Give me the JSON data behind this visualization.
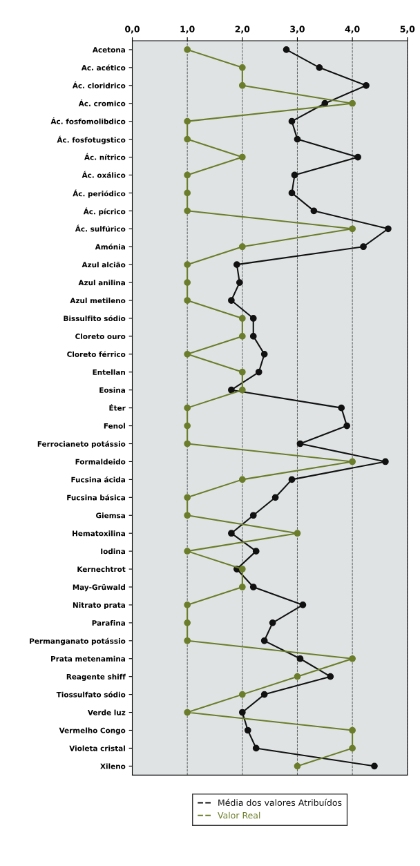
{
  "chart_data": {
    "type": "line",
    "orientation": "horizontal",
    "categories": [
      "Acetona",
      "Ac. acético",
      "Ác. cloridrico",
      "Ác. cromico",
      "Ác. fosfomolibdico",
      "Ác. fosfotugstico",
      "Ác. nítrico",
      "Ác. oxálico",
      "Ác. periódico",
      "Ác. pícrico",
      "Ác. sulfúrico",
      "Amónia",
      "Azul alcião",
      "Azul anilina",
      "Azul metileno",
      "Bissulfito sódio",
      "Cloreto ouro",
      "Cloreto férrico",
      "Entellan",
      "Eosina",
      "Éter",
      "Fenol",
      "Ferrocianeto potássio",
      "Formaldeido",
      "Fucsina ácida",
      "Fucsina básica",
      "Giemsa",
      "Hematoxilina",
      "Iodina",
      "Kernechtrot",
      "May-Grüwald",
      "Nitrato prata",
      "Parafina",
      "Permanganato potássio",
      "Prata metenamina",
      "Reagente shiff",
      "Tiossulfato sódio",
      "Verde luz",
      "Vermelho Congo",
      "Violeta cristal",
      "Xileno"
    ],
    "series": [
      {
        "name": "Média dos valores Atribuídos",
        "color": "#111111",
        "values": [
          2.8,
          3.4,
          4.25,
          3.5,
          2.9,
          3.0,
          4.1,
          2.95,
          2.9,
          3.3,
          4.65,
          4.2,
          1.9,
          1.95,
          1.8,
          2.2,
          2.2,
          2.4,
          2.3,
          1.8,
          3.8,
          3.9,
          3.05,
          4.6,
          2.9,
          2.6,
          2.2,
          1.8,
          2.25,
          1.9,
          2.2,
          3.1,
          2.55,
          2.4,
          3.05,
          3.6,
          2.4,
          2.0,
          2.1,
          2.25,
          4.4
        ]
      },
      {
        "name": "Valor Real",
        "color": "#6b7d2a",
        "values": [
          1,
          2,
          2,
          4,
          1,
          1,
          2,
          1,
          1,
          1,
          4,
          2,
          1,
          1,
          1,
          2,
          2,
          1,
          2,
          2,
          1,
          1,
          1,
          4,
          2,
          1,
          1,
          3,
          1,
          2,
          2,
          1,
          1,
          1,
          4,
          3,
          2,
          1,
          4,
          4,
          3
        ]
      }
    ],
    "xlim": [
      0,
      5
    ],
    "xticks": [
      {
        "value": 0,
        "label": "0,0"
      },
      {
        "value": 1,
        "label": "1,0"
      },
      {
        "value": 2,
        "label": "2,0"
      },
      {
        "value": 3,
        "label": "3,0"
      },
      {
        "value": 4,
        "label": "4,0"
      },
      {
        "value": 5,
        "label": "5,0"
      }
    ],
    "grid": "x",
    "marker": "circle",
    "line_style": "solid",
    "legend": "bottom"
  }
}
